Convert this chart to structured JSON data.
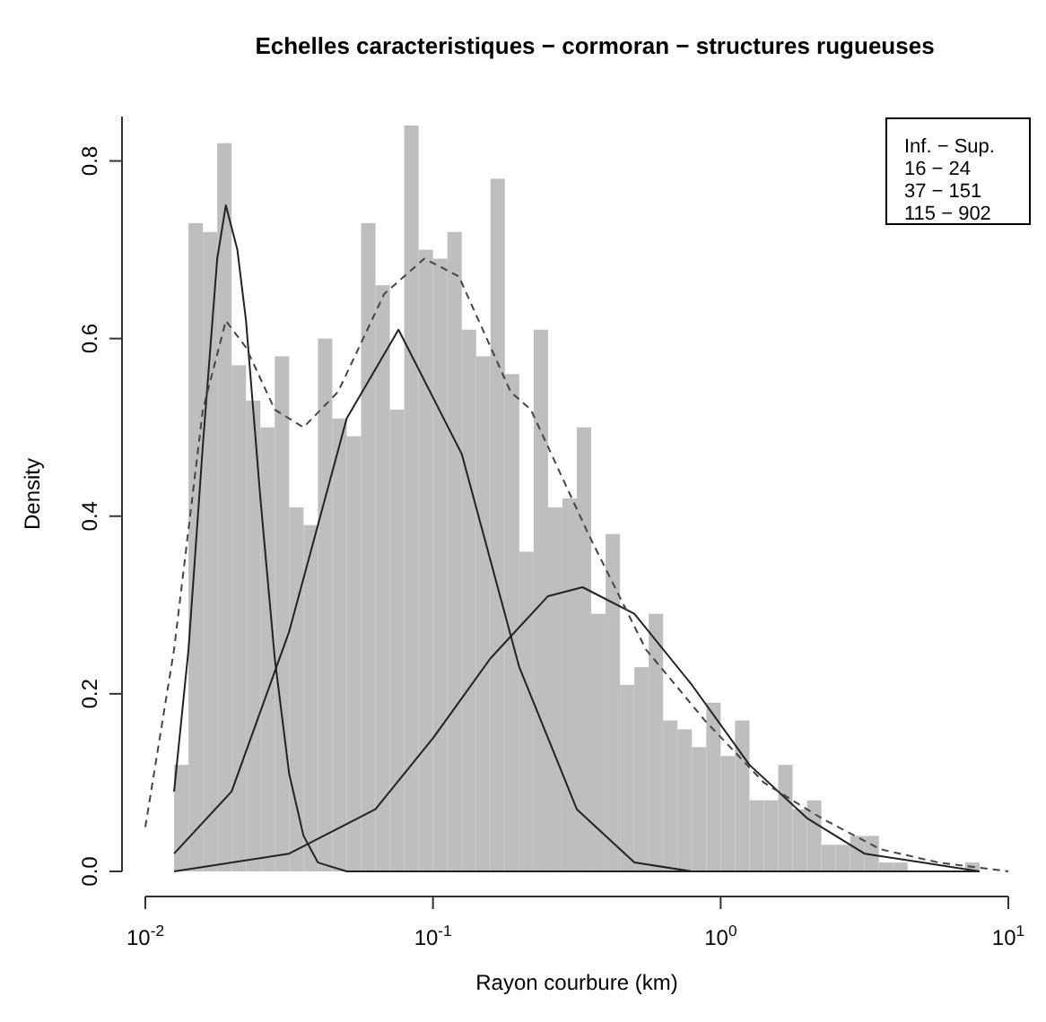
{
  "chart_data": {
    "type": "histogram",
    "title": "Echelles caracteristiques − cormoran − structures rugueuses",
    "xlabel": "Rayon courbure (km)",
    "ylabel": "Density",
    "log": "x",
    "color": "#bebebe",
    "bins": [
      0.01259,
      0.01413,
      0.01585,
      0.01778,
      0.01995,
      0.02239,
      0.02512,
      0.02818,
      0.03162,
      0.03548,
      0.03981,
      0.04467,
      0.05012,
      0.05623,
      0.0631,
      0.07079,
      0.07943,
      0.08913,
      0.1,
      0.1122,
      0.1259,
      0.1413,
      0.1585,
      0.1778,
      0.1995,
      0.2239,
      0.2512,
      0.2818,
      0.3162,
      0.3548,
      0.3981,
      0.4467,
      0.5012,
      0.5623,
      0.631,
      0.7079,
      0.7943,
      0.8913,
      1,
      1.122,
      1.259,
      1.413,
      1.585,
      1.778,
      1.995,
      2.239,
      2.512,
      2.818,
      3.162,
      3.548,
      3.981,
      4.467,
      5.012,
      5.623,
      6.31,
      7.079,
      7.943
    ],
    "values": [
      0.12,
      0.73,
      0.72,
      0.82,
      0.57,
      0.53,
      0.5,
      0.58,
      0.41,
      0.39,
      0.6,
      0.51,
      0.49,
      0.73,
      0.66,
      0.52,
      0.84,
      0.7,
      0.69,
      0.72,
      0.61,
      0.58,
      0.78,
      0.56,
      0.36,
      0.61,
      0.41,
      0.42,
      0.5,
      0.29,
      0.38,
      0.21,
      0.23,
      0.29,
      0.17,
      0.16,
      0.14,
      0.19,
      0.13,
      0.17,
      0.08,
      0.08,
      0.12,
      0.07,
      0.08,
      0.03,
      0.03,
      0.04,
      0.04,
      0.01,
      0.01,
      0.0,
      0.0,
      0.0,
      0.0,
      0.01
    ],
    "series": [
      {
        "type": "line",
        "color": "#222222",
        "line_style": "solid",
        "x": [
          0.01259,
          0.01413,
          0.01585,
          0.01778,
          0.01905,
          0.02089,
          0.02239,
          0.02512,
          0.02818,
          0.03162,
          0.03548,
          0.03981,
          0.05012,
          0.1,
          7.943
        ],
        "values": [
          0.09,
          0.25,
          0.48,
          0.69,
          0.75,
          0.7,
          0.62,
          0.42,
          0.24,
          0.11,
          0.04,
          0.01,
          0,
          0,
          0
        ]
      },
      {
        "type": "line",
        "color": "#222222",
        "line_style": "solid",
        "x": [
          0.01259,
          0.01995,
          0.03162,
          0.05012,
          0.07586,
          0.1259,
          0.1995,
          0.3162,
          0.5012,
          0.7943,
          7.943
        ],
        "values": [
          0.02,
          0.09,
          0.27,
          0.51,
          0.61,
          0.47,
          0.23,
          0.07,
          0.01,
          0,
          0
        ]
      },
      {
        "type": "line",
        "color": "#222222",
        "line_style": "solid",
        "x": [
          0.01259,
          0.03162,
          0.0631,
          0.1,
          0.1585,
          0.2512,
          0.3311,
          0.5012,
          0.7943,
          1.259,
          1.995,
          3.162,
          5.012,
          7.943
        ],
        "values": [
          0,
          0.02,
          0.07,
          0.15,
          0.24,
          0.31,
          0.32,
          0.29,
          0.21,
          0.12,
          0.06,
          0.02,
          0.01,
          0
        ]
      },
      {
        "type": "line",
        "color": "#444444",
        "line_style": "dashed",
        "x": [
          0.01,
          0.01259,
          0.01585,
          0.01905,
          0.02239,
          0.02818,
          0.03548,
          0.04677,
          0.06761,
          0.09333,
          0.123,
          0.1862,
          0.2188,
          0.3467,
          0.5495,
          0.881,
          1.413,
          2.239,
          3.589,
          5.715,
          10
        ],
        "values": [
          0.05,
          0.25,
          0.52,
          0.62,
          0.59,
          0.52,
          0.5,
          0.54,
          0.65,
          0.69,
          0.67,
          0.54,
          0.52,
          0.38,
          0.25,
          0.17,
          0.1,
          0.06,
          0.025,
          0.01,
          0
        ]
      }
    ],
    "xlim": [
      0.01,
      10
    ],
    "ylim": [
      0,
      0.85
    ],
    "xticks": [
      {
        "value": 0.01,
        "label": "10$^{-2}$"
      },
      {
        "value": 0.1,
        "label": "10$^{-1}$"
      },
      {
        "value": 1,
        "label": "10$^{0}$"
      },
      {
        "value": 10,
        "label": "10$^{1}$"
      }
    ],
    "yticks": [
      {
        "value": 0,
        "label": "0.0"
      },
      0.2,
      0.4,
      0.6,
      0.8
    ],
    "annotations": [
      "Inf. − Sup.",
      "16 − 24",
      "37 − 151",
      "115 − 902"
    ]
  }
}
